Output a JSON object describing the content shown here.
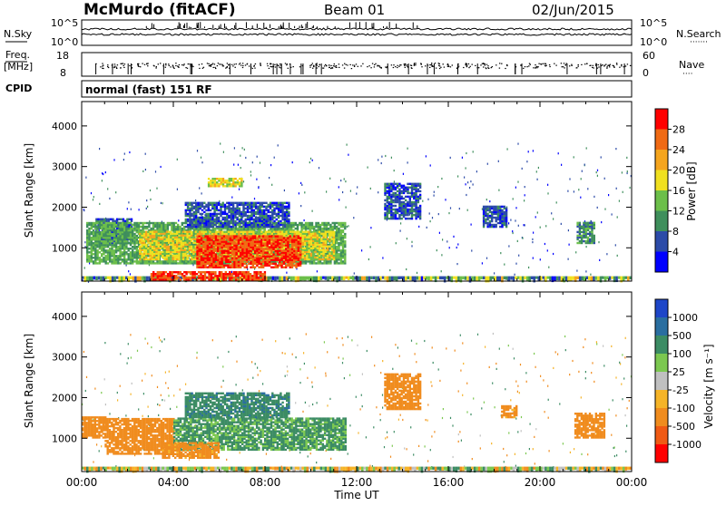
{
  "header": {
    "station": "McMurdo (fitACF)",
    "beam": "Beam 01",
    "date": "02/Jun/2015"
  },
  "strip_panels": {
    "sky_label": "N.Sky",
    "search_label": "N.Search",
    "search_dots": "·······",
    "sky_ticks": [
      "10^5",
      "10^0"
    ],
    "search_ticks": [
      "10^5",
      "10^0"
    ],
    "freq_label_top": "Freq.",
    "freq_label_bottom": "[MHz]",
    "freq_ticks": [
      "18",
      "8"
    ],
    "nave_label": "Nave",
    "nave_dots": "····",
    "nave_ticks": [
      "60",
      "0"
    ],
    "cpid_label": "CPID",
    "cpid_text": "normal (fast) 151 RF"
  },
  "chart_data": [
    {
      "type": "heatmap",
      "name": "power",
      "ylabel": "Slant Range [km]",
      "ylim": [
        180,
        4600
      ],
      "yticks": [
        "1000",
        "2000",
        "3000",
        "4000"
      ],
      "xlabel": "",
      "xlim": [
        "00:00",
        "24:00"
      ],
      "colorbar": {
        "label": "Power [dB]",
        "ticks": [
          "4",
          "8",
          "12",
          "16",
          "20",
          "24",
          "28"
        ],
        "colors": [
          "#0000ff",
          "#2c4ba8",
          "#3f8f5c",
          "#6cbf4a",
          "#f0e020",
          "#f5a51e",
          "#f06a14",
          "#ff0000"
        ]
      },
      "regions": [
        {
          "t": [
            0.6,
            2.2
          ],
          "r": [
            1100,
            1700
          ],
          "value": 6
        },
        {
          "t": [
            0.2,
            11.5
          ],
          "r": [
            600,
            1600
          ],
          "value": 12
        },
        {
          "t": [
            2.5,
            11.0
          ],
          "r": [
            700,
            1400
          ],
          "value": 18
        },
        {
          "t": [
            5.0,
            9.5
          ],
          "r": [
            500,
            1300
          ],
          "value": 28
        },
        {
          "t": [
            3.0,
            8.0
          ],
          "r": [
            200,
            420
          ],
          "value": 28
        },
        {
          "t": [
            5.5,
            7.0
          ],
          "r": [
            2500,
            2700
          ],
          "value": 18
        },
        {
          "t": [
            4.5,
            9.0
          ],
          "r": [
            1500,
            2100
          ],
          "value": 6
        },
        {
          "t": [
            13.2,
            14.8
          ],
          "r": [
            1700,
            2600
          ],
          "value": 6
        },
        {
          "t": [
            17.5,
            18.5
          ],
          "r": [
            1500,
            2000
          ],
          "value": 6
        },
        {
          "t": [
            21.6,
            22.4
          ],
          "r": [
            1100,
            1600
          ],
          "value": 10
        }
      ]
    },
    {
      "type": "heatmap",
      "name": "velocity",
      "ylabel": "Slant Range [km]",
      "ylim": [
        180,
        4600
      ],
      "yticks": [
        "1000",
        "2000",
        "3000",
        "4000"
      ],
      "xlabel": "Time UT",
      "xlim": [
        "00:00",
        "24:00"
      ],
      "xticks": [
        "00:00",
        "04:00",
        "08:00",
        "12:00",
        "16:00",
        "20:00",
        "00:00"
      ],
      "colorbar": {
        "label": "Velocity [m s⁻¹]",
        "ticks": [
          "1000",
          "500",
          "100",
          "25",
          "-25",
          "-100",
          "-500",
          "-1000"
        ],
        "colors": [
          "#1e46c8",
          "#2a6ea0",
          "#3c8c64",
          "#7cc850",
          "#c0c0c0",
          "#f5b428",
          "#f08c1e",
          "#f05a14",
          "#ff0000"
        ]
      },
      "regions": [
        {
          "t": [
            0.0,
            1.0
          ],
          "r": [
            1000,
            1500
          ],
          "value": -300
        },
        {
          "t": [
            1.0,
            4.0
          ],
          "r": [
            600,
            1500
          ],
          "value": -200
        },
        {
          "t": [
            4.0,
            11.5
          ],
          "r": [
            700,
            1500
          ],
          "value": 120
        },
        {
          "t": [
            3.5,
            6.0
          ],
          "r": [
            500,
            900
          ],
          "value": -150
        },
        {
          "t": [
            4.5,
            9.0
          ],
          "r": [
            1500,
            2100
          ],
          "value": 400
        },
        {
          "t": [
            13.2,
            14.8
          ],
          "r": [
            1700,
            2600
          ],
          "value": -200
        },
        {
          "t": [
            18.3,
            19.0
          ],
          "r": [
            1500,
            1800
          ],
          "value": -150
        },
        {
          "t": [
            21.5,
            22.8
          ],
          "r": [
            1000,
            1600
          ],
          "value": -250
        }
      ]
    }
  ]
}
